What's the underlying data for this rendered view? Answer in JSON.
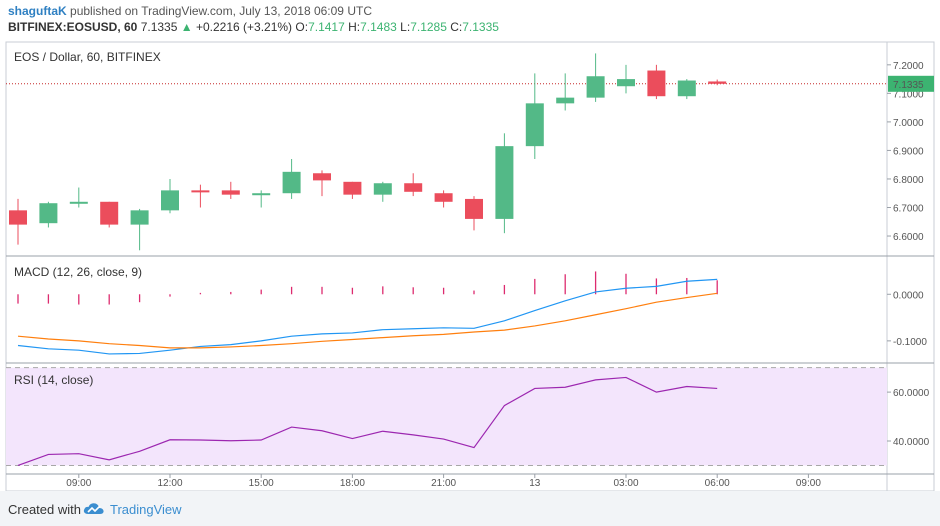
{
  "header": {
    "author": "shaguftaK",
    "published_text": "published on TradingView.com, July 13, 2018 06:09 UTC",
    "symbol": "BITFINEX:EOSUSD, 60",
    "last": "7.1335",
    "up_arrow": "▲",
    "change": "+0.2216 (+3.21%)",
    "o_label": "O:",
    "o_value": "7.1417",
    "h_label": "H:",
    "h_value": "7.1483",
    "l_label": "L:",
    "l_value": "7.1285",
    "c_label": "C:",
    "c_value": "7.1335"
  },
  "colors": {
    "up": "#53b987",
    "down": "#eb4d5c",
    "macd_line": "#2196f3",
    "signal_line": "#ff7f0e",
    "histogram": "#dd2b6f",
    "rsi_line": "#9c27b0",
    "rsi_band": "#f3e5fc",
    "last_price_line": "#c62828",
    "current_price_label": "#3cb371"
  },
  "chart_data": [
    {
      "type": "candlestick",
      "title": "EOS / Dollar, 60, BITFINEX",
      "ylim": [
        6.53,
        7.28
      ],
      "y_ticks": [
        "7.2000",
        "7.1000",
        "7.0000",
        "6.9000",
        "6.8000",
        "6.7000",
        "6.6000"
      ],
      "current_price_label": "7.1335",
      "last_price": 7.1335,
      "x_ticks": [
        "09:00",
        "12:00",
        "15:00",
        "18:00",
        "21:00",
        "13",
        "03:00",
        "06:00",
        "09:00"
      ],
      "candles": [
        {
          "o": 6.69,
          "h": 6.73,
          "l": 6.57,
          "c": 6.64
        },
        {
          "o": 6.645,
          "h": 6.72,
          "l": 6.63,
          "c": 6.715
        },
        {
          "o": 6.715,
          "h": 6.77,
          "l": 6.7,
          "c": 6.72
        },
        {
          "o": 6.72,
          "h": 6.72,
          "l": 6.63,
          "c": 6.64
        },
        {
          "o": 6.64,
          "h": 6.695,
          "l": 6.55,
          "c": 6.69
        },
        {
          "o": 6.69,
          "h": 6.8,
          "l": 6.68,
          "c": 6.76
        },
        {
          "o": 6.76,
          "h": 6.78,
          "l": 6.7,
          "c": 6.755
        },
        {
          "o": 6.76,
          "h": 6.79,
          "l": 6.73,
          "c": 6.745
        },
        {
          "o": 6.745,
          "h": 6.76,
          "l": 6.7,
          "c": 6.75
        },
        {
          "o": 6.75,
          "h": 6.87,
          "l": 6.73,
          "c": 6.825
        },
        {
          "o": 6.82,
          "h": 6.83,
          "l": 6.74,
          "c": 6.795
        },
        {
          "o": 6.79,
          "h": 6.79,
          "l": 6.73,
          "c": 6.745
        },
        {
          "o": 6.745,
          "h": 6.79,
          "l": 6.72,
          "c": 6.785
        },
        {
          "o": 6.785,
          "h": 6.82,
          "l": 6.74,
          "c": 6.755
        },
        {
          "o": 6.75,
          "h": 6.76,
          "l": 6.7,
          "c": 6.72
        },
        {
          "o": 6.73,
          "h": 6.74,
          "l": 6.62,
          "c": 6.66
        },
        {
          "o": 6.66,
          "h": 6.96,
          "l": 6.61,
          "c": 6.915
        },
        {
          "o": 6.915,
          "h": 7.17,
          "l": 6.87,
          "c": 7.065
        },
        {
          "o": 7.065,
          "h": 7.17,
          "l": 7.04,
          "c": 7.085
        },
        {
          "o": 7.085,
          "h": 7.24,
          "l": 7.07,
          "c": 7.16
        },
        {
          "o": 7.125,
          "h": 7.2,
          "l": 7.1,
          "c": 7.15
        },
        {
          "o": 7.18,
          "h": 7.2,
          "l": 7.08,
          "c": 7.09
        },
        {
          "o": 7.09,
          "h": 7.15,
          "l": 7.08,
          "c": 7.145
        },
        {
          "o": 7.1417,
          "h": 7.1483,
          "l": 7.1285,
          "c": 7.1335
        }
      ]
    },
    {
      "type": "line",
      "title": "MACD (12, 26, close, 9)",
      "ylim": [
        -0.1475,
        0.08
      ],
      "y_ticks": [
        "0.0000",
        "-0.1000"
      ],
      "series": [
        {
          "name": "MACD",
          "values": [
            -0.11,
            -0.117,
            -0.12,
            -0.128,
            -0.127,
            -0.12,
            -0.112,
            -0.108,
            -0.1,
            -0.09,
            -0.085,
            -0.083,
            -0.076,
            -0.074,
            -0.072,
            -0.073,
            -0.057,
            -0.035,
            -0.014,
            0.005,
            0.013,
            0.017,
            0.028,
            0.032
          ]
        },
        {
          "name": "Signal",
          "values": [
            -0.09,
            -0.096,
            -0.1,
            -0.106,
            -0.11,
            -0.115,
            -0.115,
            -0.113,
            -0.11,
            -0.106,
            -0.101,
            -0.097,
            -0.093,
            -0.089,
            -0.086,
            -0.081,
            -0.077,
            -0.068,
            -0.057,
            -0.044,
            -0.031,
            -0.017,
            -0.007,
            0.002
          ]
        }
      ],
      "histogram": [
        -0.02,
        -0.02,
        -0.022,
        -0.022,
        -0.017,
        -0.005,
        0.003,
        0.005,
        0.01,
        0.016,
        0.016,
        0.014,
        0.017,
        0.015,
        0.014,
        0.008,
        0.02,
        0.033,
        0.043,
        0.049,
        0.044,
        0.034,
        0.035,
        0.03
      ]
    },
    {
      "type": "line",
      "title": "RSI (14, close)",
      "ylim": [
        26.5,
        71.5
      ],
      "y_ticks": [
        "60.0000",
        "40.0000"
      ],
      "bands": [
        30,
        70
      ],
      "series": [
        {
          "name": "RSI",
          "values": [
            30,
            34.5,
            34.8,
            32.3,
            35.8,
            40.5,
            40.4,
            40.1,
            40.4,
            45.7,
            44.2,
            41,
            44,
            42.5,
            40.8,
            37.3,
            54.5,
            61.5,
            62,
            65,
            66,
            60,
            62.3,
            61.5
          ]
        }
      ]
    }
  ],
  "footer": {
    "created_with": "Created with",
    "brand": "TradingView"
  }
}
